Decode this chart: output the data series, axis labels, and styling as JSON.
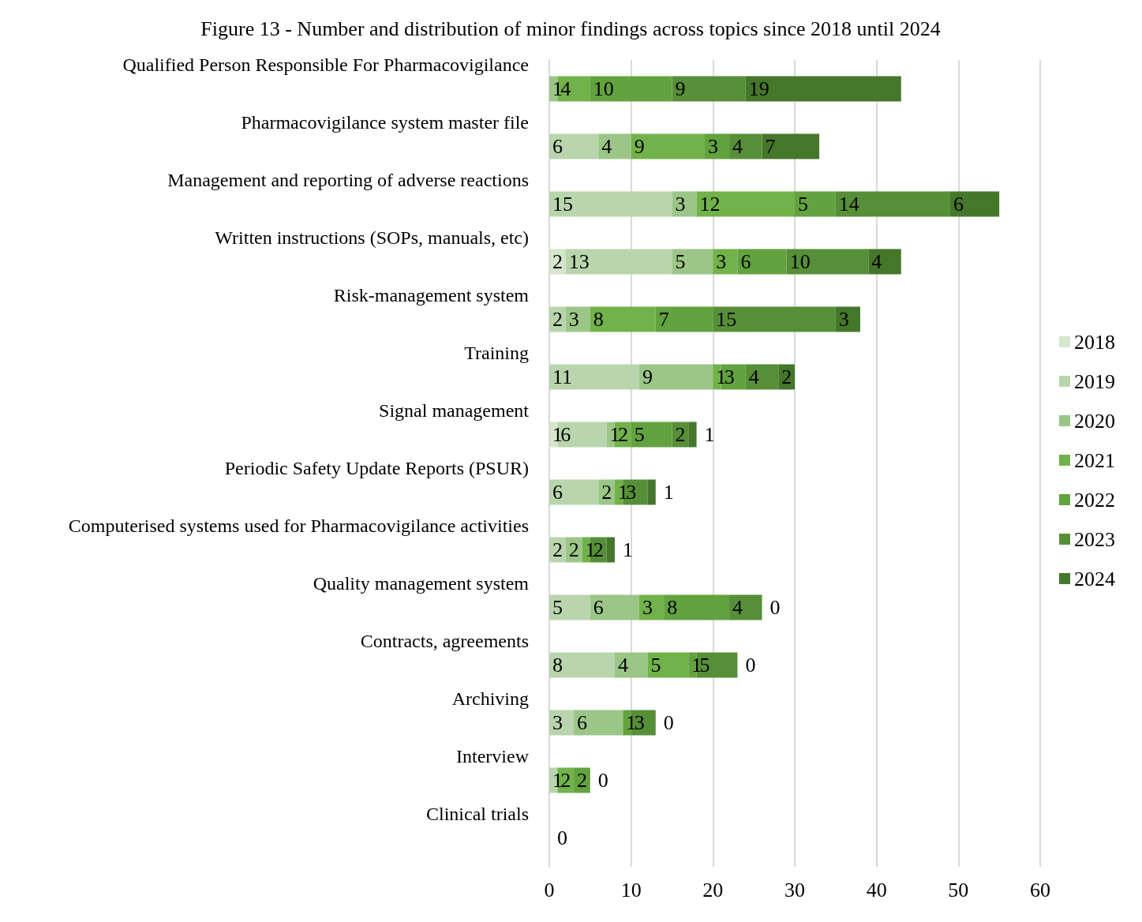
{
  "chart_data": {
    "type": "bar",
    "orientation": "horizontal",
    "stacked": true,
    "title": "Figure 13 - Number and distribution of minor findings across topics since 2018 until 2024",
    "categories": [
      "Qualified Person Responsible For Pharmacovigilance",
      "Pharmacovigilance system master file",
      "Management and reporting of adverse reactions",
      "Written instructions (SOPs, manuals, etc)",
      "Risk-management system",
      "Training",
      "Signal management",
      "Periodic Safety Update Reports (PSUR)",
      "Computerised systems used for Pharmacovigilance activities",
      "Quality management system",
      "Contracts, agreements",
      "Archiving",
      "Interview",
      "Clinical trials"
    ],
    "series": [
      {
        "name": "2018",
        "color": "#d5e6cd",
        "values": [
          0,
          0,
          0,
          2,
          0,
          0,
          1,
          0,
          0,
          0,
          0,
          0,
          0,
          0
        ],
        "value_labels": [
          null,
          null,
          null,
          "2",
          null,
          null,
          "1",
          null,
          null,
          null,
          null,
          null,
          null,
          null
        ]
      },
      {
        "name": "2019",
        "color": "#b9d5ad",
        "values": [
          0,
          6,
          15,
          13,
          2,
          11,
          6,
          6,
          2,
          5,
          8,
          3,
          1,
          0
        ],
        "value_labels": [
          null,
          "6",
          "15",
          "13",
          "2",
          "11",
          "6",
          "6",
          "2",
          "5",
          "8",
          "3",
          "1",
          null
        ]
      },
      {
        "name": "2020",
        "color": "#9bc688",
        "values": [
          1,
          4,
          3,
          5,
          3,
          9,
          1,
          2,
          2,
          6,
          4,
          6,
          0,
          0
        ],
        "value_labels": [
          "1",
          "4",
          "3",
          "5",
          "3",
          "9",
          "1",
          "2",
          "2",
          "6",
          "4",
          "6",
          null,
          null
        ]
      },
      {
        "name": "2021",
        "color": "#72b24a",
        "values": [
          4,
          9,
          12,
          3,
          8,
          1,
          2,
          1,
          1,
          3,
          5,
          0,
          2,
          0
        ],
        "value_labels": [
          "4",
          "9",
          "12",
          "3",
          "8",
          "1",
          "2",
          "1",
          "1",
          "3",
          "5",
          null,
          "2",
          null
        ]
      },
      {
        "name": "2022",
        "color": "#62a23f",
        "values": [
          10,
          3,
          5,
          6,
          7,
          3,
          5,
          0,
          0,
          8,
          1,
          1,
          2,
          0
        ],
        "value_labels": [
          "10",
          "3",
          "5",
          "6",
          "7",
          "3",
          "5",
          null,
          null,
          "8",
          "1",
          "1",
          "2",
          null
        ]
      },
      {
        "name": "2023",
        "color": "#568f37",
        "values": [
          9,
          4,
          14,
          10,
          15,
          4,
          2,
          3,
          2,
          4,
          5,
          3,
          0,
          0
        ],
        "value_labels": [
          "9",
          "4",
          "14",
          "10",
          "15",
          "4",
          "2",
          "3",
          "2",
          "4",
          "5",
          "3",
          null,
          null
        ]
      },
      {
        "name": "2024",
        "color": "#45772b",
        "values": [
          19,
          7,
          6,
          4,
          3,
          2,
          1,
          1,
          1,
          0,
          0,
          0,
          0,
          0
        ],
        "value_labels": [
          "19",
          "7",
          "6",
          "4",
          "3",
          "2",
          "1",
          "1",
          "1",
          "0",
          "0",
          "0",
          "0",
          "0"
        ]
      }
    ],
    "xlim": [
      0,
      60
    ],
    "xticks": [
      0,
      10,
      20,
      30,
      40,
      50,
      60
    ],
    "grid": "x",
    "legend": "right"
  }
}
